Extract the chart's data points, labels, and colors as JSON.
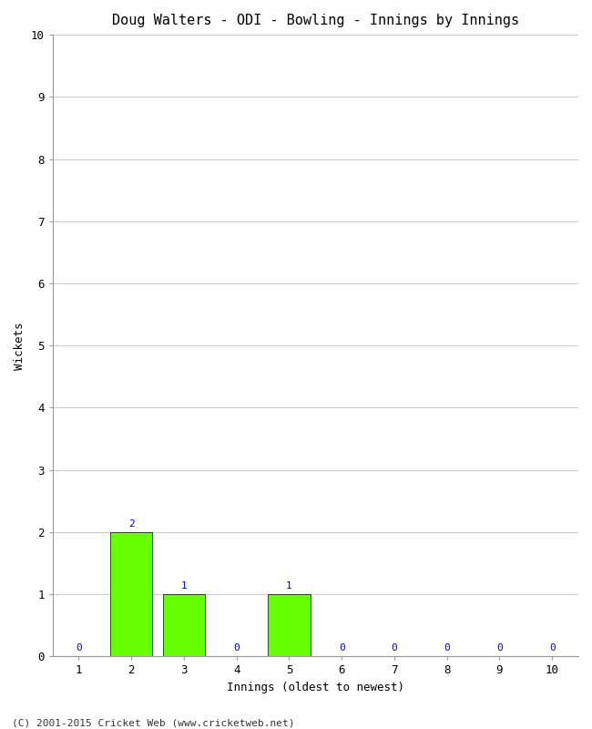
{
  "title": "Doug Walters - ODI - Bowling - Innings by Innings",
  "xlabel": "Innings (oldest to newest)",
  "ylabel": "Wickets",
  "background_color": "#ffffff",
  "plot_bg_color": "#ffffff",
  "grid_color": "#cccccc",
  "bar_color": "#66ff00",
  "bar_edge_color": "#000000",
  "label_color": "#0000cc",
  "innings": [
    1,
    2,
    3,
    4,
    5,
    6,
    7,
    8,
    9,
    10
  ],
  "wickets": [
    0,
    2,
    1,
    0,
    1,
    0,
    0,
    0,
    0,
    0
  ],
  "ylim": [
    0,
    10
  ],
  "yticks": [
    0,
    1,
    2,
    3,
    4,
    5,
    6,
    7,
    8,
    9,
    10
  ],
  "xlim": [
    0.5,
    10.5
  ],
  "xticks": [
    1,
    2,
    3,
    4,
    5,
    6,
    7,
    8,
    9,
    10
  ],
  "footer": "(C) 2001-2015 Cricket Web (www.cricketweb.net)",
  "title_fontsize": 11,
  "axis_label_fontsize": 9,
  "tick_fontsize": 9,
  "annotation_fontsize": 8,
  "footer_fontsize": 8
}
